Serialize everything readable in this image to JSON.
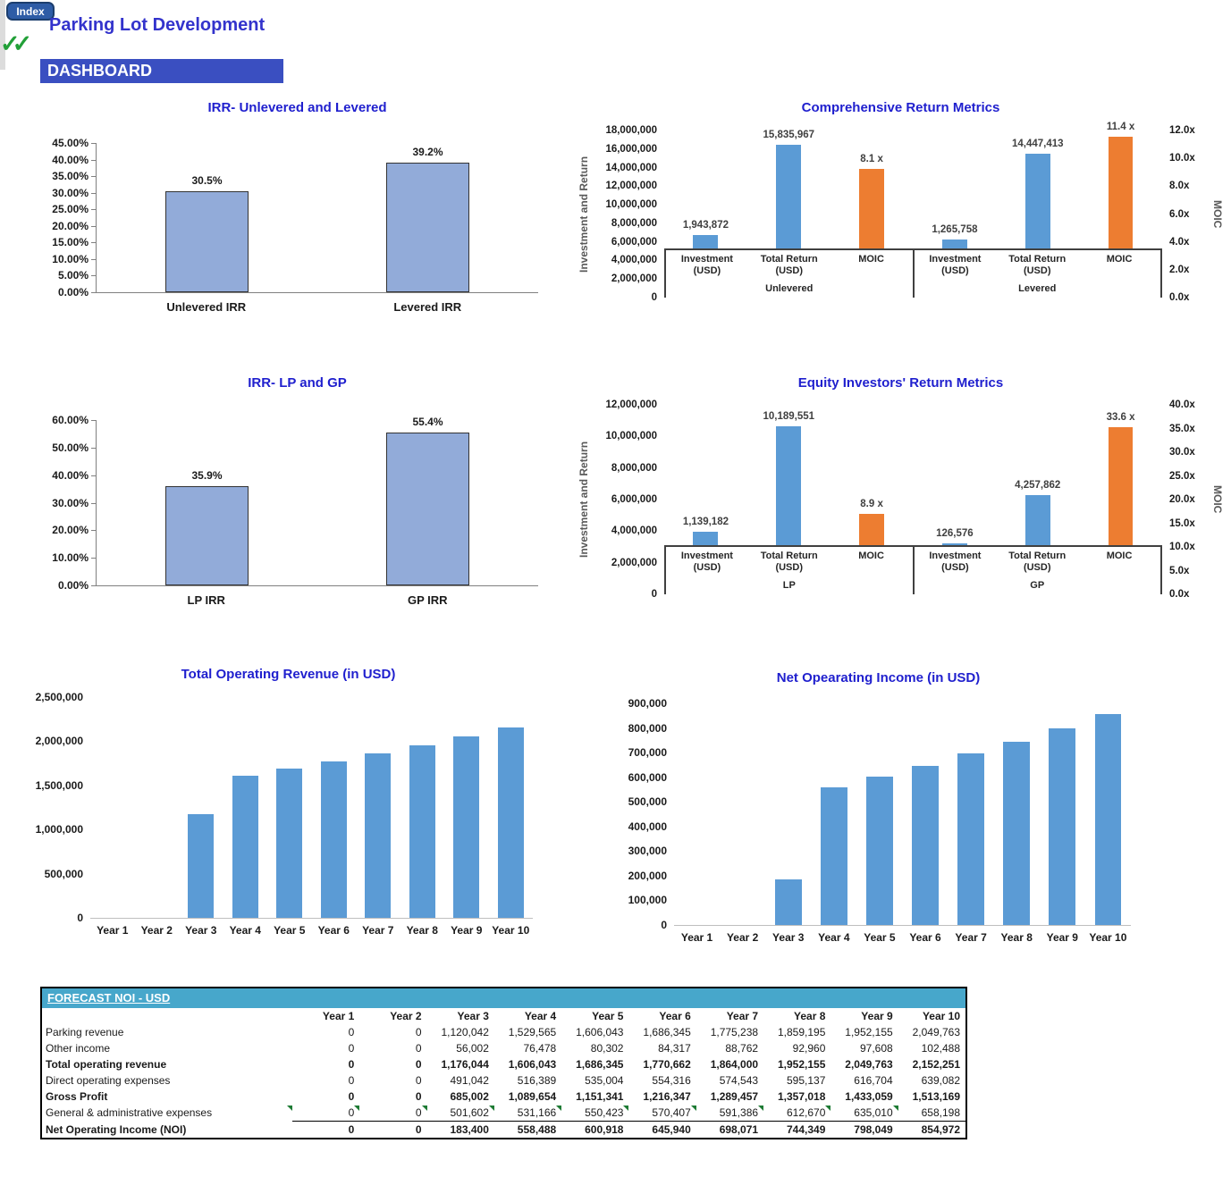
{
  "header": {
    "index_button": "Index",
    "title": "Parking Lot Development",
    "dashboard_label": "DASHBOARD",
    "checkmarks": "✓✓",
    "checkmarks_icon": "double-green-check-icon"
  },
  "colors": {
    "bar_periwinkle": "#92abd9",
    "bar_periwinkle_border": "#333333",
    "bar_blue": "#5b9bd5",
    "bar_orange": "#ed7d31",
    "title_blue": "#1f1fce",
    "band_blue": "#47a7cb",
    "dashboard_blue": "#3a4fc1",
    "index_blue": "#2e5ca6",
    "check_green": "#22a038",
    "comment_green": "#1e7b34"
  },
  "chart_data": [
    {
      "id": "c1",
      "type": "bar",
      "title": "IRR- Unlevered and Levered",
      "categories": [
        "Unlevered IRR",
        "Levered IRR"
      ],
      "values": [
        30.5,
        39.2
      ],
      "value_labels": [
        "30.5%",
        "39.2%"
      ],
      "ylim": [
        0,
        45
      ],
      "yticks": [
        "45.00%",
        "40.00%",
        "35.00%",
        "30.00%",
        "25.00%",
        "20.00%",
        "15.00%",
        "10.00%",
        "5.00%",
        "0.00%"
      ],
      "grid": false,
      "legend": false
    },
    {
      "id": "c2",
      "type": "bar-dual",
      "title": "Comprehensive Return Metrics",
      "left_axis": {
        "title": "Investment and Return",
        "max": 18000000,
        "ticks": [
          "18,000,000",
          "16,000,000",
          "14,000,000",
          "12,000,000",
          "10,000,000",
          "8,000,000",
          "6,000,000",
          "4,000,000",
          "2,000,000",
          "0"
        ]
      },
      "right_axis": {
        "title": "MOIC",
        "max": 12,
        "ticks": [
          "12.0x",
          "10.0x",
          "8.0x",
          "6.0x",
          "4.0x",
          "2.0x",
          "0.0x"
        ]
      },
      "bar_categories": [
        "Investment (USD)",
        "Total Return (USD)",
        "MOIC"
      ],
      "groups": [
        {
          "label": "Unlevered",
          "bars": [
            {
              "value": 1943872,
              "axis": "L",
              "color": "blue",
              "label": "1,943,872"
            },
            {
              "value": 15835967,
              "axis": "L",
              "color": "blue",
              "label": "15,835,967"
            },
            {
              "value": 8.1,
              "axis": "R",
              "color": "orange",
              "label": "8.1 x"
            }
          ]
        },
        {
          "label": "Levered",
          "bars": [
            {
              "value": 1265758,
              "axis": "L",
              "color": "blue",
              "label": "1,265,758"
            },
            {
              "value": 14447413,
              "axis": "L",
              "color": "blue",
              "label": "14,447,413"
            },
            {
              "value": 11.4,
              "axis": "R",
              "color": "orange",
              "label": "11.4 x"
            }
          ]
        }
      ],
      "grid": false,
      "legend": false
    },
    {
      "id": "c3",
      "type": "bar",
      "title": "IRR- LP and GP",
      "categories": [
        "LP IRR",
        "GP IRR"
      ],
      "values": [
        35.9,
        55.4
      ],
      "value_labels": [
        "35.9%",
        "55.4%"
      ],
      "ylim": [
        0,
        60
      ],
      "yticks": [
        "60.00%",
        "50.00%",
        "40.00%",
        "30.00%",
        "20.00%",
        "10.00%",
        "0.00%"
      ],
      "grid": false,
      "legend": false
    },
    {
      "id": "c4",
      "type": "bar-dual",
      "title": "Equity Investors' Return Metrics",
      "left_axis": {
        "title": "Investment and Return",
        "max": 12000000,
        "ticks": [
          "12,000,000",
          "10,000,000",
          "8,000,000",
          "6,000,000",
          "4,000,000",
          "2,000,000",
          "0"
        ]
      },
      "right_axis": {
        "title": "MOIC",
        "max": 40,
        "ticks": [
          "40.0x",
          "35.0x",
          "30.0x",
          "25.0x",
          "20.0x",
          "15.0x",
          "10.0x",
          "5.0x",
          "0.0x"
        ]
      },
      "bar_categories": [
        "Investment (USD)",
        "Total Return (USD)",
        "MOIC"
      ],
      "groups": [
        {
          "label": "LP",
          "bars": [
            {
              "value": 1139182,
              "axis": "L",
              "color": "blue",
              "label": "1,139,182"
            },
            {
              "value": 10189551,
              "axis": "L",
              "color": "blue",
              "label": "10,189,551"
            },
            {
              "value": 8.9,
              "axis": "R",
              "color": "orange",
              "label": "8.9 x"
            }
          ]
        },
        {
          "label": "GP",
          "bars": [
            {
              "value": 126576,
              "axis": "L",
              "color": "blue",
              "label": "126,576"
            },
            {
              "value": 4257862,
              "axis": "L",
              "color": "blue",
              "label": "4,257,862"
            },
            {
              "value": 33.6,
              "axis": "R",
              "color": "orange",
              "label": "33.6 x"
            }
          ]
        }
      ],
      "grid": false,
      "legend": false
    },
    {
      "id": "c5",
      "type": "bar",
      "title": "Total Operating Revenue (in USD)",
      "categories": [
        "Year 1",
        "Year 2",
        "Year 3",
        "Year 4",
        "Year 5",
        "Year 6",
        "Year 7",
        "Year 8",
        "Year 9",
        "Year 10"
      ],
      "values": [
        0,
        0,
        1176044,
        1606043,
        1686345,
        1770662,
        1864000,
        1952155,
        2049763,
        2152251
      ],
      "value_labels": [],
      "ylim": [
        0,
        2500000
      ],
      "yticks": [
        "2,500,000",
        "2,000,000",
        "1,500,000",
        "1,000,000",
        "500,000",
        "0"
      ],
      "grid": false,
      "legend": false
    },
    {
      "id": "c6",
      "type": "bar",
      "title": "Net Opearating Income (in USD)",
      "categories": [
        "Year 1",
        "Year 2",
        "Year 3",
        "Year 4",
        "Year 5",
        "Year 6",
        "Year 7",
        "Year 8",
        "Year 9",
        "Year 10"
      ],
      "values": [
        0,
        0,
        183400,
        558488,
        600918,
        645940,
        698071,
        744349,
        798049,
        854972
      ],
      "value_labels": [],
      "ylim": [
        0,
        900000
      ],
      "yticks": [
        "900,000",
        "800,000",
        "700,000",
        "600,000",
        "500,000",
        "400,000",
        "300,000",
        "200,000",
        "100,000",
        "0"
      ],
      "grid": false,
      "legend": false
    }
  ],
  "table": {
    "band_title": "FORECAST NOI - USD",
    "columns": [
      "Year 1",
      "Year 2",
      "Year 3",
      "Year 4",
      "Year 5",
      "Year 6",
      "Year 7",
      "Year 8",
      "Year 9",
      "Year 10"
    ],
    "rows": [
      {
        "label": "Parking revenue",
        "bold": false,
        "values": [
          "0",
          "0",
          "1,120,042",
          "1,529,565",
          "1,606,043",
          "1,686,345",
          "1,775,238",
          "1,859,195",
          "1,952,155",
          "2,049,763"
        ]
      },
      {
        "label": "Other income",
        "bold": false,
        "values": [
          "0",
          "0",
          "56,002",
          "76,478",
          "80,302",
          "84,317",
          "88,762",
          "92,960",
          "97,608",
          "102,488"
        ]
      },
      {
        "label": "Total operating revenue",
        "bold": true,
        "values": [
          "0",
          "0",
          "1,176,044",
          "1,606,043",
          "1,686,345",
          "1,770,662",
          "1,864,000",
          "1,952,155",
          "2,049,763",
          "2,152,251"
        ]
      },
      {
        "label": "Direct operating expenses",
        "bold": false,
        "values": [
          "0",
          "0",
          "491,042",
          "516,389",
          "535,004",
          "554,316",
          "574,543",
          "595,137",
          "616,704",
          "639,082"
        ]
      },
      {
        "label": "Gross Profit",
        "bold": true,
        "values": [
          "0",
          "0",
          "685,002",
          "1,089,654",
          "1,151,341",
          "1,216,347",
          "1,289,457",
          "1,357,018",
          "1,433,059",
          "1,513,169"
        ]
      },
      {
        "label": "General & administrative expenses",
        "bold": false,
        "comment_label": true,
        "comment_cells": [
          0,
          1,
          2,
          3,
          4,
          5,
          6,
          7,
          8
        ],
        "values": [
          "0",
          "0",
          "501,602",
          "531,166",
          "550,423",
          "570,407",
          "591,386",
          "612,670",
          "635,010",
          "658,198"
        ]
      },
      {
        "label": "Net Operating Income (NOI)",
        "bold": true,
        "top_border": true,
        "values": [
          "0",
          "0",
          "183,400",
          "558,488",
          "600,918",
          "645,940",
          "698,071",
          "744,349",
          "798,049",
          "854,972"
        ]
      }
    ]
  }
}
